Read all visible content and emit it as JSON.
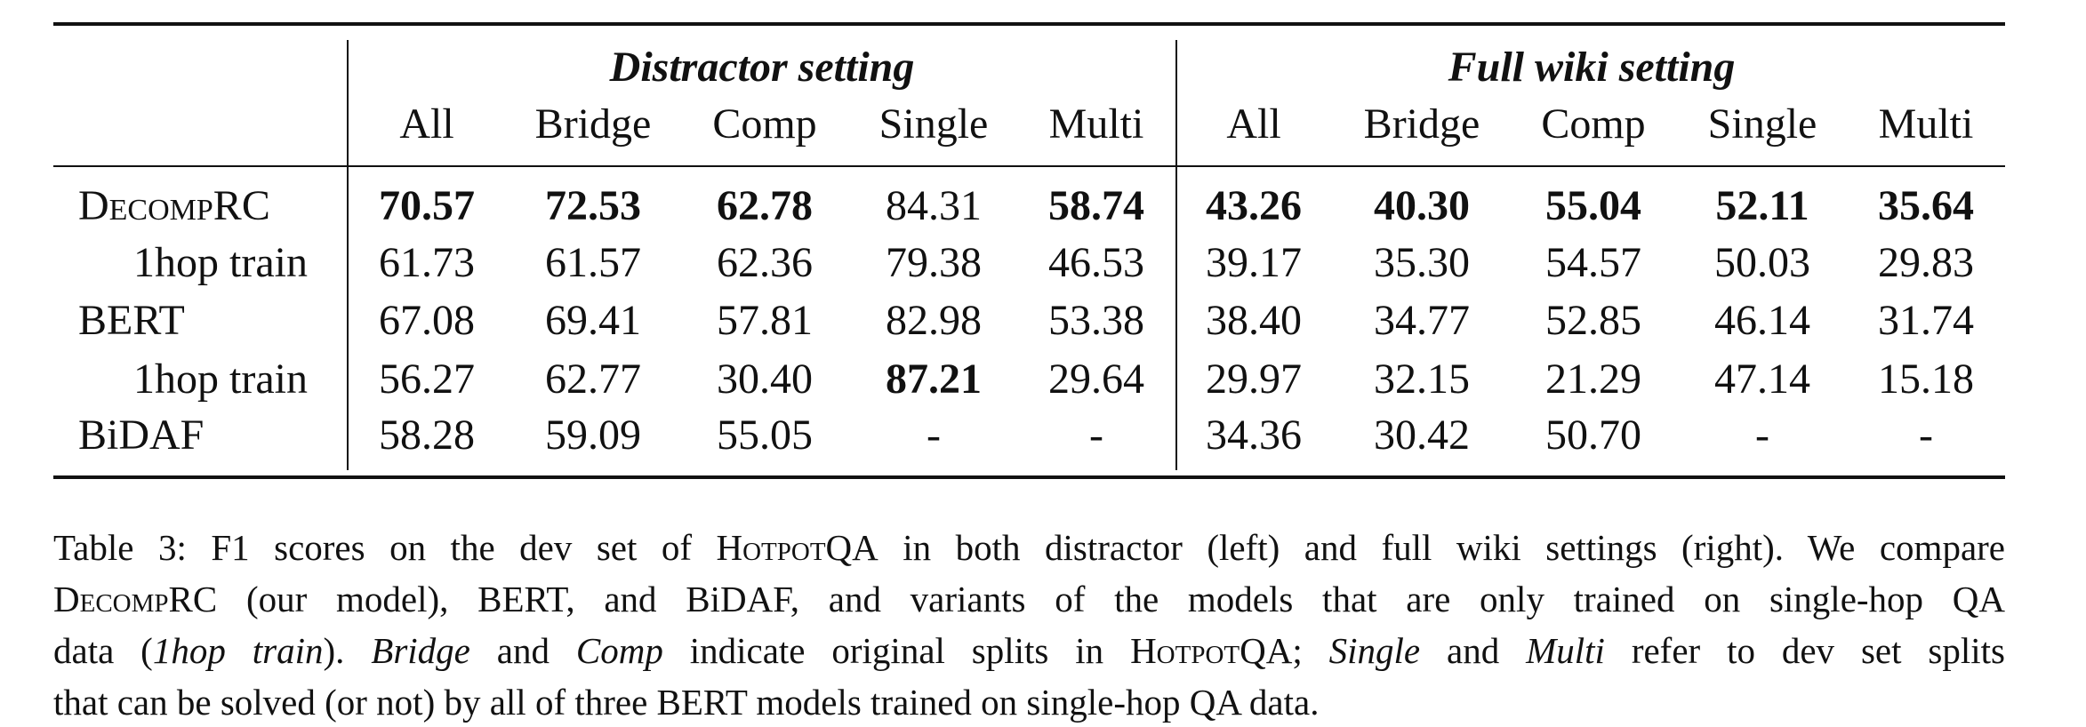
{
  "table": {
    "groups": [
      "Distractor setting",
      "Full wiki setting"
    ],
    "columns": [
      "All",
      "Bridge",
      "Comp",
      "Single",
      "Multi",
      "All",
      "Bridge",
      "Comp",
      "Single",
      "Multi"
    ],
    "rows": [
      {
        "label": "DecompRC",
        "label_style": "smallcaps",
        "indent": false,
        "cells": [
          "70.57",
          "72.53",
          "62.78",
          "84.31",
          "58.74",
          "43.26",
          "40.30",
          "55.04",
          "52.11",
          "35.64"
        ],
        "bold": [
          true,
          true,
          true,
          false,
          true,
          true,
          true,
          true,
          true,
          true
        ]
      },
      {
        "label": "1hop train",
        "label_style": "plain",
        "indent": true,
        "cells": [
          "61.73",
          "61.57",
          "62.36",
          "79.38",
          "46.53",
          "39.17",
          "35.30",
          "54.57",
          "50.03",
          "29.83"
        ],
        "bold": [
          false,
          false,
          false,
          false,
          false,
          false,
          false,
          false,
          false,
          false
        ]
      },
      {
        "label": "BERT",
        "label_style": "plain",
        "indent": false,
        "cells": [
          "67.08",
          "69.41",
          "57.81",
          "82.98",
          "53.38",
          "38.40",
          "34.77",
          "52.85",
          "46.14",
          "31.74"
        ],
        "bold": [
          false,
          false,
          false,
          false,
          false,
          false,
          false,
          false,
          false,
          false
        ]
      },
      {
        "label": "1hop train",
        "label_style": "plain",
        "indent": true,
        "cells": [
          "56.27",
          "62.77",
          "30.40",
          "87.21",
          "29.64",
          "29.97",
          "32.15",
          "21.29",
          "47.14",
          "15.18"
        ],
        "bold": [
          false,
          false,
          false,
          true,
          false,
          false,
          false,
          false,
          false,
          false
        ]
      },
      {
        "label": "BiDAF",
        "label_style": "plain",
        "indent": false,
        "cells": [
          "58.28",
          "59.09",
          "55.05",
          "-",
          "-",
          "34.36",
          "30.42",
          "50.70",
          "-",
          "-"
        ],
        "bold": [
          false,
          false,
          false,
          false,
          false,
          false,
          false,
          false,
          false,
          false
        ]
      }
    ]
  },
  "caption": [
    [
      {
        "text": "Table 3: F1 scores on the dev set of ",
        "style": "plain"
      },
      {
        "text": "HotpotQA",
        "style": "smallcaps"
      },
      {
        "text": " in both distractor (left) and full wiki settings (right). We compare",
        "style": "plain"
      }
    ],
    [
      {
        "text": "DecompRC",
        "style": "smallcaps"
      },
      {
        "text": " (our model), BERT, and BiDAF, and variants of the models that are only trained on single-hop QA",
        "style": "plain"
      }
    ],
    [
      {
        "text": "data (",
        "style": "plain"
      },
      {
        "text": "1hop train",
        "style": "italic"
      },
      {
        "text": "). ",
        "style": "plain"
      },
      {
        "text": "Bridge",
        "style": "italic"
      },
      {
        "text": " and ",
        "style": "plain"
      },
      {
        "text": "Comp",
        "style": "italic"
      },
      {
        "text": " indicate original splits in ",
        "style": "plain"
      },
      {
        "text": "HotpotQA",
        "style": "smallcaps"
      },
      {
        "text": "; ",
        "style": "plain"
      },
      {
        "text": "Single",
        "style": "italic"
      },
      {
        "text": " and ",
        "style": "plain"
      },
      {
        "text": "Multi",
        "style": "italic"
      },
      {
        "text": " refer to dev set splits",
        "style": "plain"
      }
    ],
    [
      {
        "text": "that can be solved (or not) by all of three BERT models trained on single-hop QA data.",
        "style": "plain"
      }
    ]
  ]
}
